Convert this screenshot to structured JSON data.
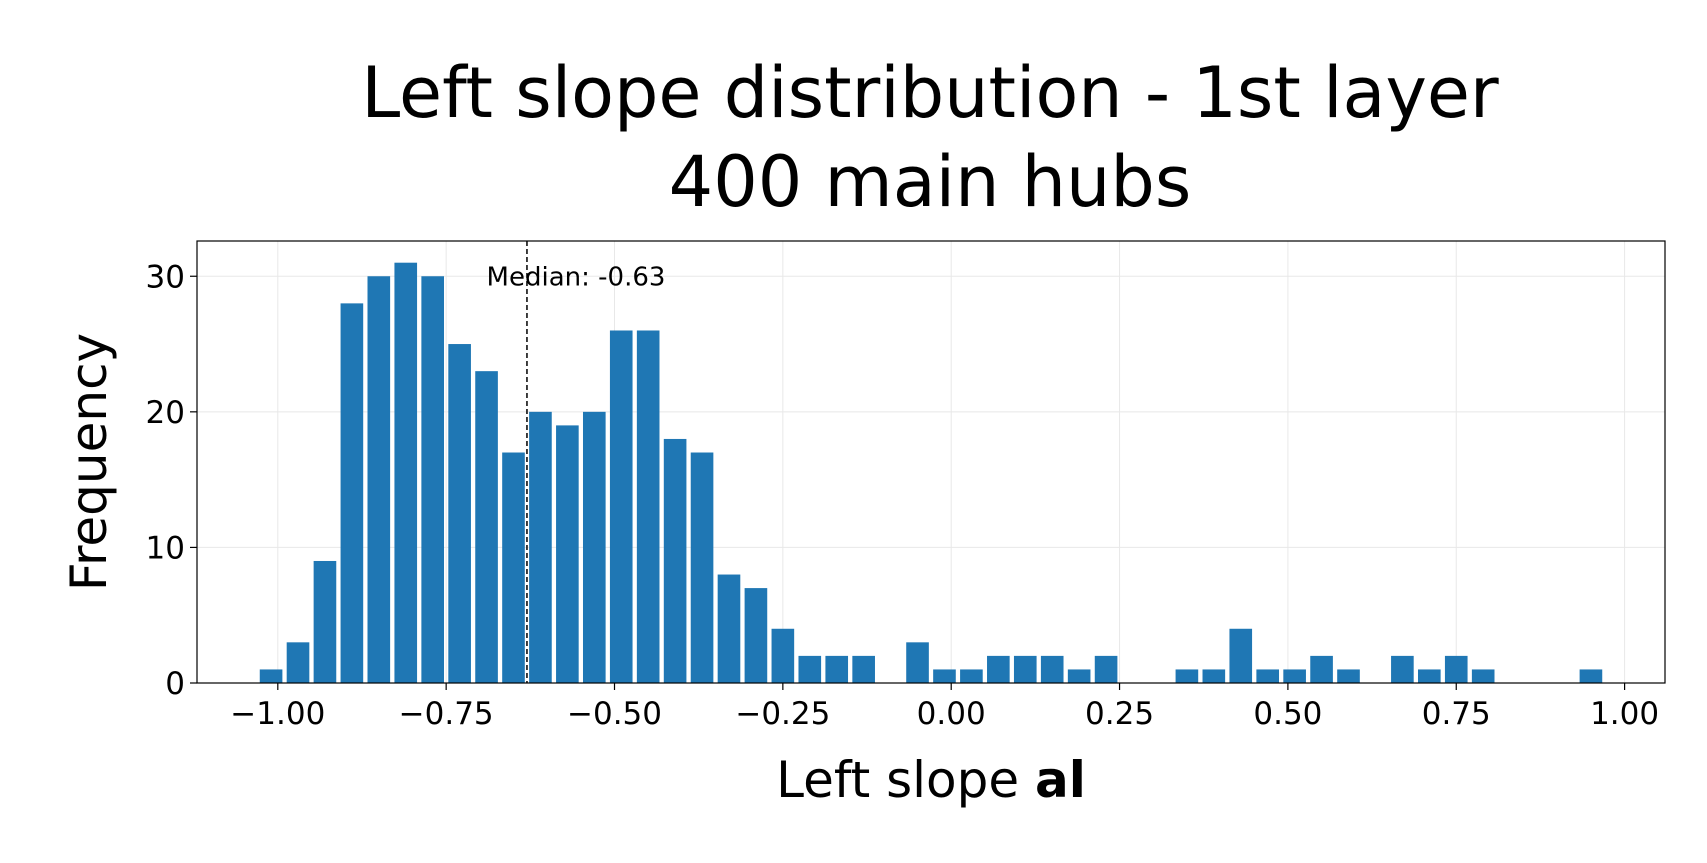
{
  "chart_data": {
    "type": "bar",
    "title_lines": [
      "Left slope distribution - 1st layer",
      "400 main hubs"
    ],
    "xlabel": "Left slope ",
    "xlabel_bold": "al",
    "ylabel": "Frequency",
    "xlim": [
      -1.12,
      1.06
    ],
    "ylim": [
      0,
      32.6
    ],
    "x_ticks": [
      -1.0,
      -0.75,
      -0.5,
      -0.25,
      0.0,
      0.25,
      0.5,
      0.75,
      1.0
    ],
    "x_tick_labels": [
      "−1.00",
      "−0.75",
      "−0.50",
      "−0.25",
      "0.00",
      "0.25",
      "0.50",
      "0.75",
      "1.00"
    ],
    "y_ticks": [
      0,
      10,
      20,
      30
    ],
    "y_tick_labels": [
      "0",
      "10",
      "20",
      "30"
    ],
    "grid": true,
    "bin_width": 0.04,
    "bar_color": "#1f77b4",
    "median_value": -0.63,
    "median_label": "Median: -0.63",
    "bins": [
      {
        "x": -1.01,
        "count": 1
      },
      {
        "x": -0.97,
        "count": 3
      },
      {
        "x": -0.93,
        "count": 9
      },
      {
        "x": -0.89,
        "count": 28
      },
      {
        "x": -0.85,
        "count": 30
      },
      {
        "x": -0.81,
        "count": 31
      },
      {
        "x": -0.77,
        "count": 30
      },
      {
        "x": -0.73,
        "count": 25
      },
      {
        "x": -0.69,
        "count": 23
      },
      {
        "x": -0.65,
        "count": 17
      },
      {
        "x": -0.61,
        "count": 20
      },
      {
        "x": -0.57,
        "count": 19
      },
      {
        "x": -0.53,
        "count": 20
      },
      {
        "x": -0.49,
        "count": 26
      },
      {
        "x": -0.45,
        "count": 26
      },
      {
        "x": -0.41,
        "count": 18
      },
      {
        "x": -0.37,
        "count": 17
      },
      {
        "x": -0.33,
        "count": 8
      },
      {
        "x": -0.29,
        "count": 7
      },
      {
        "x": -0.25,
        "count": 4
      },
      {
        "x": -0.21,
        "count": 2
      },
      {
        "x": -0.17,
        "count": 2
      },
      {
        "x": -0.13,
        "count": 2
      },
      {
        "x": -0.09,
        "count": 0
      },
      {
        "x": -0.05,
        "count": 3
      },
      {
        "x": -0.01,
        "count": 1
      },
      {
        "x": 0.03,
        "count": 1
      },
      {
        "x": 0.07,
        "count": 2
      },
      {
        "x": 0.11,
        "count": 2
      },
      {
        "x": 0.15,
        "count": 2
      },
      {
        "x": 0.19,
        "count": 1
      },
      {
        "x": 0.23,
        "count": 2
      },
      {
        "x": 0.27,
        "count": 0
      },
      {
        "x": 0.31,
        "count": 0
      },
      {
        "x": 0.35,
        "count": 1
      },
      {
        "x": 0.39,
        "count": 1
      },
      {
        "x": 0.43,
        "count": 4
      },
      {
        "x": 0.47,
        "count": 1
      },
      {
        "x": 0.51,
        "count": 1
      },
      {
        "x": 0.55,
        "count": 2
      },
      {
        "x": 0.59,
        "count": 1
      },
      {
        "x": 0.63,
        "count": 0
      },
      {
        "x": 0.67,
        "count": 2
      },
      {
        "x": 0.71,
        "count": 1
      },
      {
        "x": 0.75,
        "count": 2
      },
      {
        "x": 0.79,
        "count": 1
      },
      {
        "x": 0.83,
        "count": 0
      },
      {
        "x": 0.87,
        "count": 0
      },
      {
        "x": 0.91,
        "count": 0
      },
      {
        "x": 0.95,
        "count": 1
      }
    ]
  }
}
